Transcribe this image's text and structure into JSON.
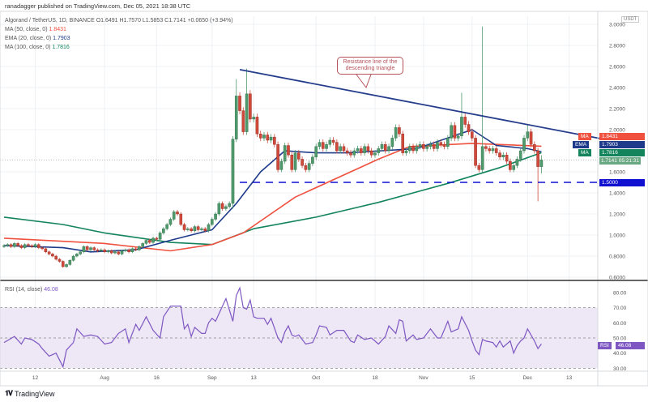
{
  "header": {
    "publisher_line": "ranadagger published on TradingView.com, Dec 05, 2021 18:38 UTC"
  },
  "legend": {
    "symbol_line": "Algorand / TetherUS, 1D, BINANCE  O1.6491  H1.7570  L1.5853  C1.7141  +0.0650 (+3.94%)",
    "ma50_label": "MA (50, close, 0)",
    "ma50_value": "1.8431",
    "ema20_label": "EMA (20, close, 0)",
    "ema20_value": "1.7903",
    "ma100_label": "MA (100, close, 0)",
    "ma100_value": "1.7816",
    "rsi_label": "RSI (14, close)",
    "rsi_value": "46.08"
  },
  "annotation": {
    "text": "Resistance line of the descending triangle"
  },
  "price_axis": {
    "currency": "USDT",
    "ticks": [
      "3.0000",
      "2.8000",
      "2.6000",
      "2.4000",
      "2.2000",
      "2.0000",
      "1.6000",
      "1.4000",
      "1.2000",
      "1.0000",
      "0.8000",
      "0.6000"
    ],
    "tags": {
      "ma50": {
        "name": "MA",
        "value": "1.8431"
      },
      "ema20": {
        "name": "EMA",
        "value": "1.7903"
      },
      "ma100": {
        "name": "MA",
        "value": "1.7816"
      },
      "last": {
        "value": "1.7141",
        "countdown": "05:21:31"
      },
      "support": {
        "value": "1.5000"
      }
    }
  },
  "rsi_axis": {
    "ticks": [
      "80.00",
      "70.00",
      "60.00",
      "50.00",
      "40.00",
      "30.00"
    ],
    "tag_name": "RSI",
    "tag_value": "46.08"
  },
  "time_axis": {
    "labels": [
      {
        "date": "2021-07-12",
        "text": "12"
      },
      {
        "date": "2021-08-01",
        "text": "Aug"
      },
      {
        "date": "2021-08-16",
        "text": "16"
      },
      {
        "date": "2021-09-01",
        "text": "Sep"
      },
      {
        "date": "2021-09-13",
        "text": "13"
      },
      {
        "date": "2021-10-01",
        "text": "Oct"
      },
      {
        "date": "2021-10-18",
        "text": "18"
      },
      {
        "date": "2021-11-01",
        "text": "Nov"
      },
      {
        "date": "2021-11-15",
        "text": "15"
      },
      {
        "date": "2021-12-01",
        "text": "Dec"
      },
      {
        "date": "2021-12-13",
        "text": "13"
      }
    ]
  },
  "footer": {
    "brand": "TradingView"
  },
  "colors": {
    "up": "#4f9a6c",
    "down": "#d0493a",
    "ma50": "#f0513f",
    "ema20": "#1e3a8a",
    "ma100": "#13845c",
    "trendline": "#263d8c",
    "support": "#1010d0",
    "rsi": "#7e57c2",
    "rsi_band": "#ede7f6"
  },
  "chart_data": {
    "type": "candlestick",
    "title": "Algorand / TetherUS, 1D, BINANCE",
    "start_date": "2021-07-03",
    "first_open": 0.89,
    "close": [
      0.9,
      0.91,
      0.89,
      0.92,
      0.9,
      0.88,
      0.91,
      0.9,
      0.89,
      0.91,
      0.88,
      0.87,
      0.84,
      0.82,
      0.8,
      0.77,
      0.75,
      0.7,
      0.72,
      0.76,
      0.8,
      0.82,
      0.84,
      0.89,
      0.86,
      0.88,
      0.86,
      0.85,
      0.86,
      0.84,
      0.85,
      0.83,
      0.84,
      0.82,
      0.85,
      0.86,
      0.84,
      0.87,
      0.86,
      0.89,
      0.92,
      0.95,
      0.93,
      0.97,
      0.96,
      1.02,
      1.06,
      1.1,
      1.15,
      1.22,
      1.2,
      1.1,
      1.05,
      1.06,
      1.04,
      1.08,
      1.05,
      1.06,
      1.04,
      1.1,
      1.15,
      1.2,
      1.3,
      1.25,
      1.27,
      1.3,
      1.91,
      2.32,
      2.18,
      1.98,
      2.34,
      2.1,
      2.12,
      1.96,
      1.92,
      1.95,
      1.9,
      1.93,
      1.86,
      1.62,
      1.7,
      1.85,
      1.76,
      1.62,
      1.78,
      1.72,
      1.66,
      1.62,
      1.68,
      1.74,
      1.84,
      1.88,
      1.82,
      1.86,
      1.9,
      1.88,
      1.8,
      1.84,
      1.8,
      1.78,
      1.76,
      1.8,
      1.82,
      1.78,
      1.84,
      1.8,
      1.76,
      1.78,
      1.82,
      1.86,
      1.8,
      1.84,
      1.92,
      2.02,
      1.96,
      1.78,
      1.8,
      1.84,
      1.8,
      1.84,
      1.86,
      1.82,
      1.84,
      1.86,
      1.82,
      1.88,
      1.86,
      1.84,
      1.92,
      2.04,
      1.92,
      1.94,
      2.12,
      2.05,
      1.98,
      1.92,
      1.66,
      1.62,
      1.84,
      1.82,
      1.8,
      1.82,
      1.78,
      1.74,
      1.76,
      1.7,
      1.62,
      1.66,
      1.72,
      1.8,
      1.92,
      1.98,
      1.86,
      1.8,
      1.6491,
      1.7141
    ],
    "notable_wicks": [
      {
        "date": "2021-09-07",
        "low": 1.25
      },
      {
        "date": "2021-09-08",
        "high": 2.48
      },
      {
        "date": "2021-09-11",
        "high": 2.58
      },
      {
        "date": "2021-11-12",
        "high": 2.35
      },
      {
        "date": "2021-11-18",
        "high": 2.98
      },
      {
        "date": "2021-12-01",
        "high": 2.05
      },
      {
        "date": "2021-12-04",
        "low": 1.32
      },
      {
        "date": "2021-12-05",
        "high": 1.757,
        "low": 1.5853
      }
    ],
    "ma50": [
      [
        "2021-07-03",
        0.97
      ],
      [
        "2021-08-01",
        0.92
      ],
      [
        "2021-08-20",
        0.85
      ],
      [
        "2021-09-01",
        0.91
      ],
      [
        "2021-09-10",
        1.02
      ],
      [
        "2021-09-25",
        1.36
      ],
      [
        "2021-10-19",
        1.72
      ],
      [
        "2021-10-28",
        1.84
      ],
      [
        "2021-11-15",
        1.87
      ],
      [
        "2021-12-05",
        1.8431
      ]
    ],
    "ema20": [
      [
        "2021-07-03",
        0.9
      ],
      [
        "2021-07-20",
        0.88
      ],
      [
        "2021-07-28",
        0.84
      ],
      [
        "2021-08-10",
        0.86
      ],
      [
        "2021-08-20",
        0.95
      ],
      [
        "2021-09-01",
        1.05
      ],
      [
        "2021-09-08",
        1.3
      ],
      [
        "2021-09-15",
        1.6
      ],
      [
        "2021-09-22",
        1.8
      ],
      [
        "2021-10-01",
        1.78
      ],
      [
        "2021-10-10",
        1.78
      ],
      [
        "2021-10-20",
        1.8
      ],
      [
        "2021-10-30",
        1.82
      ],
      [
        "2021-11-15",
        2.0
      ],
      [
        "2021-11-22",
        1.85
      ],
      [
        "2021-12-01",
        1.82
      ],
      [
        "2021-12-05",
        1.7903
      ]
    ],
    "ma100": [
      [
        "2021-07-03",
        1.17
      ],
      [
        "2021-07-20",
        1.1
      ],
      [
        "2021-08-01",
        1.02
      ],
      [
        "2021-08-20",
        0.93
      ],
      [
        "2021-09-01",
        0.91
      ],
      [
        "2021-09-13",
        1.06
      ],
      [
        "2021-10-01",
        1.17
      ],
      [
        "2021-10-19",
        1.31
      ],
      [
        "2021-11-08",
        1.49
      ],
      [
        "2021-11-23",
        1.64
      ],
      [
        "2021-12-05",
        1.7816
      ]
    ],
    "trendline": [
      [
        "2021-09-09",
        2.57
      ],
      [
        "2021-12-23",
        1.91
      ]
    ],
    "support_level": 1.5,
    "last_price": 1.7141,
    "ylim": [
      0.6,
      3.0
    ],
    "rsi": {
      "ylim": [
        25,
        85
      ],
      "bands": [
        30,
        70
      ],
      "midline": 50,
      "points": [
        [
          "2021-07-03",
          47
        ],
        [
          "2021-07-06",
          51
        ],
        [
          "2021-07-08",
          46
        ],
        [
          "2021-07-09",
          50
        ],
        [
          "2021-07-11",
          49
        ],
        [
          "2021-07-13",
          46
        ],
        [
          "2021-07-14",
          43
        ],
        [
          "2021-07-16",
          38
        ],
        [
          "2021-07-18",
          40
        ],
        [
          "2021-07-20",
          31
        ],
        [
          "2021-07-21",
          42
        ],
        [
          "2021-07-23",
          47
        ],
        [
          "2021-07-24",
          56
        ],
        [
          "2021-07-26",
          51
        ],
        [
          "2021-07-28",
          52
        ],
        [
          "2021-07-30",
          51
        ],
        [
          "2021-08-01",
          46
        ],
        [
          "2021-08-03",
          47
        ],
        [
          "2021-08-05",
          53
        ],
        [
          "2021-08-07",
          56
        ],
        [
          "2021-08-08",
          47
        ],
        [
          "2021-08-10",
          59
        ],
        [
          "2021-08-11",
          55
        ],
        [
          "2021-08-13",
          64
        ],
        [
          "2021-08-15",
          55
        ],
        [
          "2021-08-17",
          50
        ],
        [
          "2021-08-18",
          64
        ],
        [
          "2021-08-20",
          71
        ],
        [
          "2021-08-23",
          71
        ],
        [
          "2021-08-24",
          56
        ],
        [
          "2021-08-25",
          59
        ],
        [
          "2021-08-26",
          51
        ],
        [
          "2021-08-27",
          57
        ],
        [
          "2021-08-29",
          53
        ],
        [
          "2021-08-30",
          53
        ],
        [
          "2021-08-31",
          60
        ],
        [
          "2021-09-01",
          63
        ],
        [
          "2021-09-02",
          61
        ],
        [
          "2021-09-05",
          76
        ],
        [
          "2021-09-07",
          61
        ],
        [
          "2021-09-08",
          78
        ],
        [
          "2021-09-09",
          83
        ],
        [
          "2021-09-10",
          70
        ],
        [
          "2021-09-11",
          69
        ],
        [
          "2021-09-12",
          75
        ],
        [
          "2021-09-13",
          64
        ],
        [
          "2021-09-14",
          63
        ],
        [
          "2021-09-16",
          63
        ],
        [
          "2021-09-17",
          59
        ],
        [
          "2021-09-18",
          63
        ],
        [
          "2021-09-20",
          50
        ],
        [
          "2021-09-21",
          47
        ],
        [
          "2021-09-22",
          54
        ],
        [
          "2021-09-23",
          58
        ],
        [
          "2021-09-24",
          52
        ],
        [
          "2021-09-25",
          51
        ],
        [
          "2021-09-26",
          52
        ],
        [
          "2021-09-28",
          46
        ],
        [
          "2021-09-30",
          47
        ],
        [
          "2021-10-01",
          52
        ],
        [
          "2021-10-02",
          58
        ],
        [
          "2021-10-04",
          57
        ],
        [
          "2021-10-05",
          52
        ],
        [
          "2021-10-07",
          55
        ],
        [
          "2021-10-09",
          55
        ],
        [
          "2021-10-11",
          48
        ],
        [
          "2021-10-12",
          47
        ],
        [
          "2021-10-13",
          52
        ],
        [
          "2021-10-15",
          49
        ],
        [
          "2021-10-17",
          50
        ],
        [
          "2021-10-19",
          46
        ],
        [
          "2021-10-21",
          51
        ],
        [
          "2021-10-22",
          58
        ],
        [
          "2021-10-24",
          53
        ],
        [
          "2021-10-25",
          62
        ],
        [
          "2021-10-26",
          61
        ],
        [
          "2021-10-27",
          48
        ],
        [
          "2021-10-29",
          52
        ],
        [
          "2021-10-30",
          49
        ],
        [
          "2021-11-01",
          50
        ],
        [
          "2021-11-03",
          56
        ],
        [
          "2021-11-05",
          50
        ],
        [
          "2021-11-06",
          50
        ],
        [
          "2021-11-08",
          61
        ],
        [
          "2021-11-09",
          54
        ],
        [
          "2021-11-11",
          56
        ],
        [
          "2021-11-12",
          64
        ],
        [
          "2021-11-14",
          55
        ],
        [
          "2021-11-15",
          48
        ],
        [
          "2021-11-16",
          42
        ],
        [
          "2021-11-17",
          39
        ],
        [
          "2021-11-18",
          49
        ],
        [
          "2021-11-19",
          48
        ],
        [
          "2021-11-21",
          47
        ],
        [
          "2021-11-22",
          44
        ],
        [
          "2021-11-23",
          48
        ],
        [
          "2021-11-24",
          44
        ],
        [
          "2021-11-26",
          48
        ],
        [
          "2021-11-27",
          40
        ],
        [
          "2021-11-28",
          45
        ],
        [
          "2021-11-29",
          48
        ],
        [
          "2021-11-30",
          50
        ],
        [
          "2021-12-01",
          56
        ],
        [
          "2021-12-03",
          48
        ],
        [
          "2021-12-04",
          43
        ],
        [
          "2021-12-05",
          46.08
        ]
      ]
    }
  }
}
